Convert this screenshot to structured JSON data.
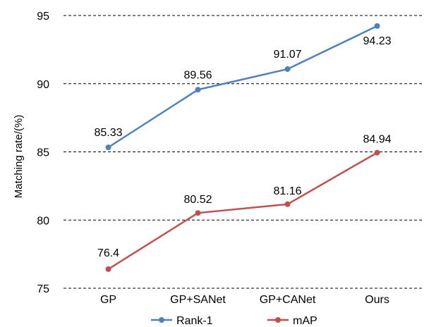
{
  "chart_data": {
    "type": "line",
    "ylabel": "Matching rate/(%)",
    "ylim": [
      75,
      95
    ],
    "yticks": [
      "75",
      "80",
      "85",
      "90",
      "95"
    ],
    "grid": "horizontal-dashed",
    "legend_position": "bottom",
    "categories": [
      "GP",
      "GP+SANet",
      "GP+CANet",
      "Ours"
    ],
    "series": [
      {
        "name": "Rank-1",
        "color": "#4f81bd",
        "values": [
          85.33,
          89.56,
          91.07,
          94.23
        ],
        "labels": [
          "85.33",
          "89.56",
          "91.07",
          "94.23"
        ]
      },
      {
        "name": "mAP",
        "color": "#c0504d",
        "values": [
          76.4,
          80.52,
          81.16,
          84.94
        ],
        "labels": [
          "76.4",
          "80.52",
          "81.16",
          "84.94"
        ]
      }
    ]
  }
}
